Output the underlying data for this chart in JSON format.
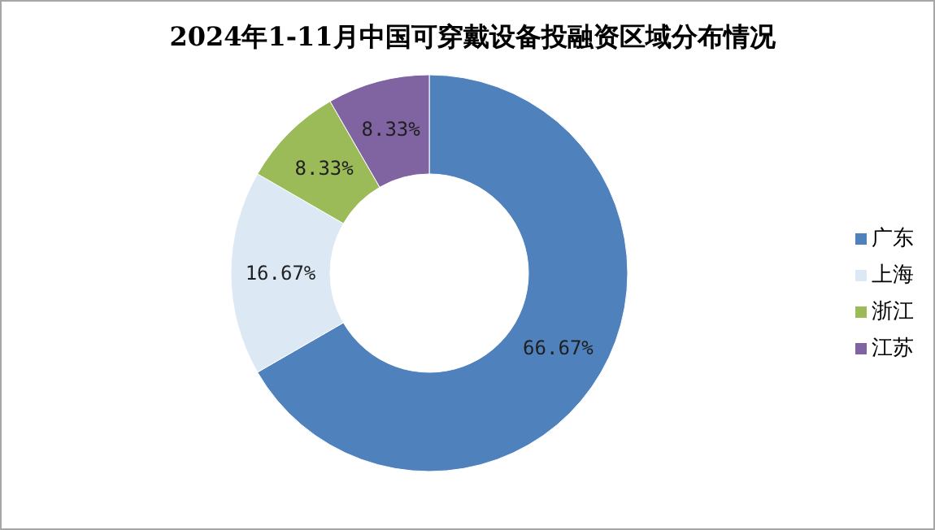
{
  "chart_data": {
    "type": "donut",
    "title": "2024年1-11月中国可穿戴设备投融资区域分布情况",
    "categories": [
      "广东",
      "上海",
      "浙江",
      "江苏"
    ],
    "values": [
      66.67,
      16.67,
      8.33,
      8.33
    ],
    "colors": [
      "#4f81bd",
      "#dce9f5",
      "#9bbb59",
      "#8064a2"
    ],
    "value_labels": [
      "66.67%",
      "16.67%",
      "8.33%",
      "8.33%"
    ],
    "legend": "right"
  }
}
